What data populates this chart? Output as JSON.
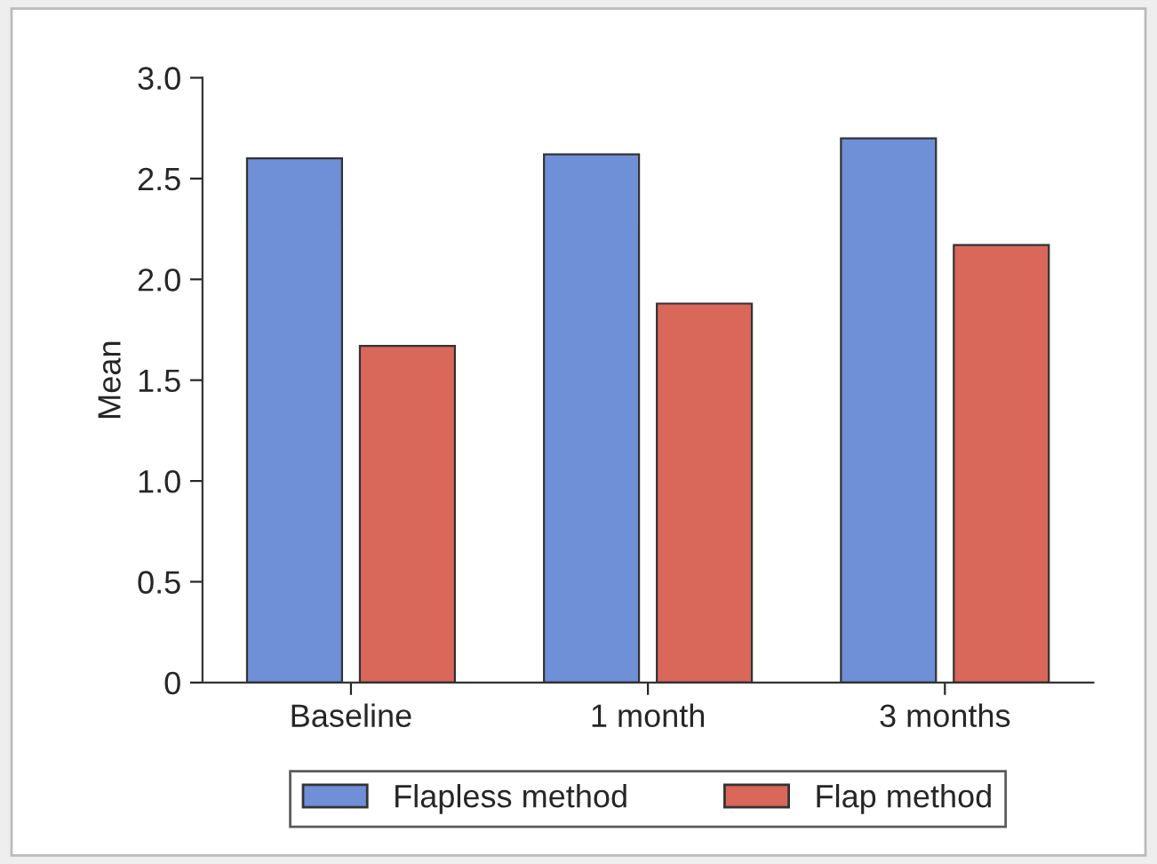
{
  "chart_data": {
    "type": "bar",
    "ylabel": "Mean",
    "categories": [
      "Baseline",
      "1 month",
      "3 months"
    ],
    "series": [
      {
        "name": "Flapless method",
        "color": "#6f8fd6",
        "values": [
          2.6,
          2.62,
          2.7
        ]
      },
      {
        "name": "Flap method",
        "color": "#d9675a",
        "values": [
          1.67,
          1.88,
          2.17
        ]
      }
    ],
    "ylim": [
      0,
      3.0
    ],
    "yticks": [
      {
        "value": 0,
        "label": "0"
      },
      {
        "value": 0.5,
        "label": "0.5"
      },
      {
        "value": 1,
        "label": "1.0"
      },
      {
        "value": 1.5,
        "label": "1.5"
      },
      {
        "value": 2,
        "label": "2.0"
      },
      {
        "value": 2.5,
        "label": "2.5"
      },
      {
        "value": 3,
        "label": "3.0"
      }
    ],
    "grid": false,
    "legend": "bottom"
  }
}
